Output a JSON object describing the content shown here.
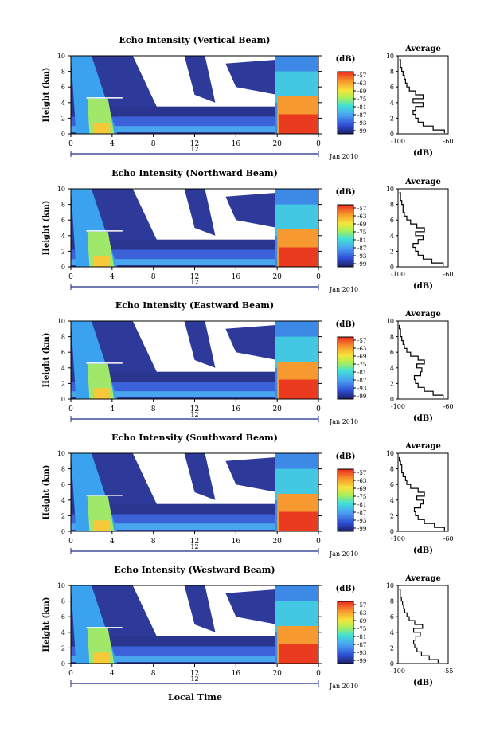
{
  "figure": {
    "xlabel_bottom": "Local Time",
    "date_label": "Jan 2010"
  },
  "chart_data": [
    {
      "type": "heatmap",
      "title": "Echo Intensity (Vertical Beam)",
      "ylabel": "Height (km)",
      "ylim": [
        0,
        10
      ],
      "yticks": [
        0,
        2,
        4,
        6,
        8,
        10
      ],
      "xlim": [
        0,
        24
      ],
      "xtick_labels": [
        "0",
        "4",
        "8",
        "12",
        "16",
        "20",
        "0"
      ],
      "day_label": "12",
      "colorbar_title": "(dB)",
      "colorbar_ticks": [
        "-57",
        "-63",
        "-69",
        "-75",
        "-81",
        "-87",
        "-93",
        "-99"
      ],
      "average": {
        "title": "Average",
        "xlabel": "(dB)",
        "xlim": [
          -100,
          -60
        ],
        "xtick_labels": [
          "-100",
          "-60"
        ],
        "height_km": [
          0.1,
          0.5,
          1.0,
          1.5,
          2.0,
          2.5,
          3.0,
          3.5,
          4.0,
          4.5,
          5.0,
          5.5,
          6.0,
          6.5,
          7.0,
          7.5,
          8.0,
          8.5,
          9.0,
          9.5
        ],
        "db": [
          -63,
          -72,
          -80,
          -84,
          -86,
          -88,
          -86,
          -80,
          -88,
          -80,
          -86,
          -91,
          -93,
          -94,
          -95,
          -96,
          -97,
          -98,
          -98,
          -99
        ]
      }
    },
    {
      "type": "heatmap",
      "title": "Echo Intensity (Northward Beam)",
      "ylabel": "Height (km)",
      "ylim": [
        0,
        10
      ],
      "yticks": [
        0,
        2,
        4,
        6,
        8,
        10
      ],
      "xlim": [
        0,
        24
      ],
      "xtick_labels": [
        "0",
        "4",
        "8",
        "12",
        "16",
        "20",
        "0"
      ],
      "day_label": "12",
      "colorbar_title": "(dB)",
      "colorbar_ticks": [
        "-57",
        "-63",
        "-69",
        "-75",
        "-81",
        "-87",
        "-93",
        "-99"
      ],
      "average": {
        "title": "Average",
        "xlabel": "(dB)",
        "xlim": [
          -100,
          -60
        ],
        "xtick_labels": [
          "-100",
          "-60"
        ],
        "height_km": [
          0.1,
          0.5,
          1.0,
          1.5,
          2.0,
          2.5,
          3.0,
          3.5,
          4.0,
          4.5,
          5.0,
          5.5,
          6.0,
          6.5,
          7.0,
          7.5,
          8.0,
          8.5,
          9.0,
          9.5
        ],
        "db": [
          -64,
          -73,
          -80,
          -84,
          -86,
          -88,
          -84,
          -80,
          -86,
          -79,
          -85,
          -90,
          -93,
          -95,
          -96,
          -96,
          -97,
          -98,
          -98,
          -99
        ]
      }
    },
    {
      "type": "heatmap",
      "title": "Echo Intensity (Eastward Beam)",
      "ylabel": "Height (km)",
      "ylim": [
        0,
        10
      ],
      "yticks": [
        0,
        2,
        4,
        6,
        8,
        10
      ],
      "xlim": [
        0,
        24
      ],
      "xtick_labels": [
        "0",
        "4",
        "8",
        "12",
        "16",
        "20",
        "0"
      ],
      "day_label": "12",
      "colorbar_title": "(dB)",
      "colorbar_ticks": [
        "-57",
        "-63",
        "-69",
        "-75",
        "-81",
        "-87",
        "-93",
        "-99"
      ],
      "average": {
        "title": "Average",
        "xlabel": "(dB)",
        "xlim": [
          -100,
          -60
        ],
        "xtick_labels": [
          "-100",
          "-60"
        ],
        "height_km": [
          0.1,
          0.5,
          1.0,
          1.5,
          2.0,
          2.5,
          3.0,
          3.5,
          4.0,
          4.5,
          5.0,
          5.5,
          6.0,
          6.5,
          7.0,
          7.5,
          8.0,
          8.5,
          9.0,
          9.5
        ],
        "db": [
          -64,
          -72,
          -79,
          -84,
          -86,
          -87,
          -82,
          -81,
          -85,
          -79,
          -84,
          -90,
          -93,
          -95,
          -96,
          -97,
          -98,
          -98,
          -99,
          -99
        ]
      }
    },
    {
      "type": "heatmap",
      "title": "Echo Intensity (Southward Beam)",
      "ylabel": "Height (km)",
      "ylim": [
        0,
        10
      ],
      "yticks": [
        0,
        2,
        4,
        6,
        8,
        10
      ],
      "xlim": [
        0,
        24
      ],
      "xtick_labels": [
        "0",
        "4",
        "8",
        "12",
        "16",
        "20",
        "0"
      ],
      "day_label": "12",
      "colorbar_title": "(dB)",
      "colorbar_ticks": [
        "-57",
        "-63",
        "-69",
        "-75",
        "-81",
        "-87",
        "-93",
        "-99"
      ],
      "average": {
        "title": "Average",
        "xlabel": "(dB)",
        "xlim": [
          -100,
          -60
        ],
        "xtick_labels": [
          "-100",
          "-60"
        ],
        "height_km": [
          0.1,
          0.5,
          1.0,
          1.5,
          2.0,
          2.5,
          3.0,
          3.5,
          4.0,
          4.5,
          5.0,
          5.5,
          6.0,
          6.5,
          7.0,
          7.5,
          8.0,
          8.5,
          9.0,
          9.5
        ],
        "db": [
          -63,
          -71,
          -79,
          -84,
          -86,
          -87,
          -82,
          -80,
          -85,
          -79,
          -84,
          -90,
          -93,
          -94,
          -96,
          -97,
          -97,
          -98,
          -99,
          -99
        ]
      }
    },
    {
      "type": "heatmap",
      "title": "Echo Intensity (Westward Beam)",
      "ylabel": "Height (km)",
      "ylim": [
        0,
        10
      ],
      "yticks": [
        0,
        2,
        4,
        6,
        8,
        10
      ],
      "xlim": [
        0,
        24
      ],
      "xtick_labels": [
        "0",
        "4",
        "8",
        "12",
        "16",
        "20",
        "0"
      ],
      "day_label": "12",
      "colorbar_title": "(dB)",
      "colorbar_ticks": [
        "-57",
        "-63",
        "-69",
        "-75",
        "-81",
        "-87",
        "-93",
        "-99"
      ],
      "average": {
        "title": "Average",
        "xlabel": "(dB)",
        "xlim": [
          -100,
          -55
        ],
        "xtick_labels": [
          "-100",
          "-55"
        ],
        "height_km": [
          0.1,
          0.5,
          1.0,
          1.5,
          2.0,
          2.5,
          3.0,
          3.5,
          4.0,
          4.5,
          5.0,
          5.5,
          6.0,
          6.5,
          7.0,
          7.5,
          8.0,
          8.5,
          9.0,
          9.5
        ],
        "db": [
          -64,
          -72,
          -79,
          -83,
          -85,
          -86,
          -84,
          -80,
          -86,
          -78,
          -85,
          -90,
          -92,
          -94,
          -95,
          -96,
          -97,
          -98,
          -98,
          -99
        ]
      }
    }
  ]
}
